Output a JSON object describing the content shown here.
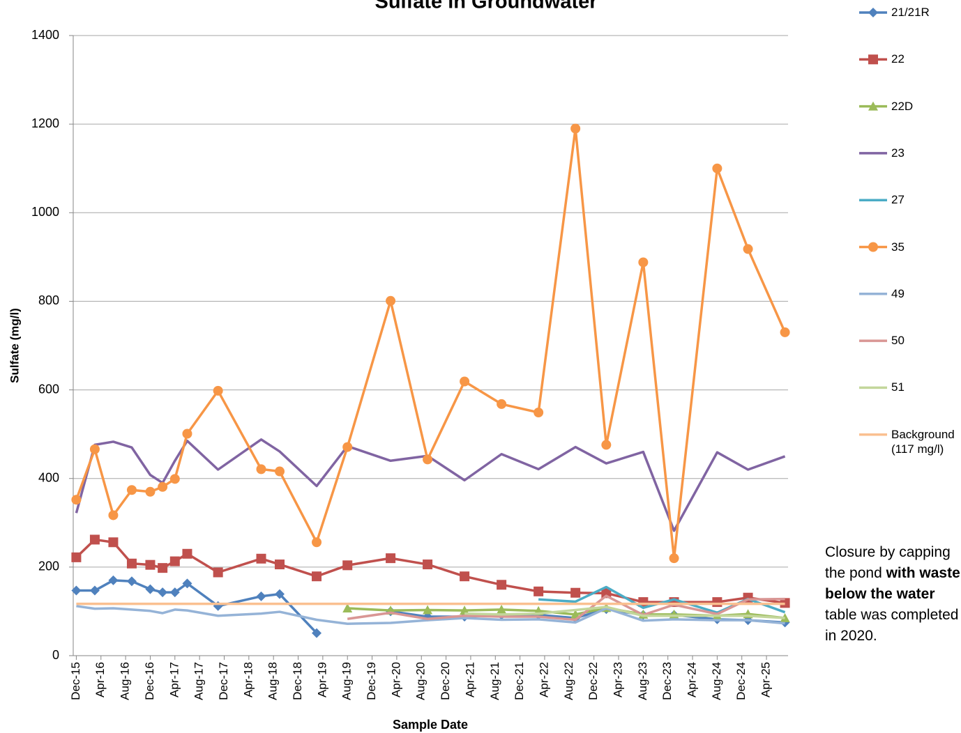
{
  "chart_data": {
    "type": "line",
    "title": "Sulfate in Groundwater",
    "x_label": "Sample Date",
    "y_label": "Sulfate (mg/l)",
    "ylim": [
      0,
      1400
    ],
    "yticks": [
      0,
      200,
      400,
      600,
      800,
      1000,
      1200,
      1400
    ],
    "xlim": [
      "Dec-15",
      "Jul-25"
    ],
    "xticks": [
      "Dec-15",
      "Apr-16",
      "Aug-16",
      "Dec-16",
      "Apr-17",
      "Aug-17",
      "Dec-17",
      "Apr-18",
      "Aug-18",
      "Dec-18",
      "Apr-19",
      "Aug-19",
      "Dec-19",
      "Apr-20",
      "Aug-20",
      "Dec-20",
      "Apr-21",
      "Aug-21",
      "Dec-21",
      "Apr-22",
      "Aug-22",
      "Dec-22",
      "Apr-23",
      "Aug-23",
      "Dec-23",
      "Apr-24",
      "Aug-24",
      "Dec-24",
      "Apr-25"
    ],
    "grid": true,
    "legend": "right",
    "annotation": [
      {
        "text": "Closure by capping the pond "
      },
      {
        "text": "with waste below the water",
        "bold": true
      },
      {
        "text": " table was completed in 2020."
      }
    ],
    "series": [
      {
        "name": "21/21R",
        "color": "#4f81bd",
        "marker": "diamond",
        "x": [
          "Dec-15",
          "Mar-16",
          "Jun-16",
          "Sep-16",
          "Dec-16",
          "Feb-17",
          "Apr-17",
          "Jun-17",
          "Nov-17",
          "Jun-18",
          "Sep-18",
          "Mar-19",
          "Aug-19",
          "Mar-20",
          "Sep-20",
          "Mar-21",
          "Sep-21",
          "Mar-22",
          "Sep-22",
          "Feb-23",
          "Aug-23",
          "Jan-24",
          "Aug-24",
          "Jan-25",
          "Jul-25"
        ],
        "values": [
          147,
          147,
          170,
          168,
          150,
          143,
          143,
          163,
          112,
          134,
          139,
          51,
          null,
          100,
          88,
          88,
          92,
          92,
          85,
          105,
          92,
          92,
          82,
          80,
          75
        ]
      },
      {
        "name": "22",
        "color": "#c0504d",
        "marker": "square",
        "x": [
          "Dec-15",
          "Mar-16",
          "Jun-16",
          "Sep-16",
          "Dec-16",
          "Feb-17",
          "Apr-17",
          "Jun-17",
          "Nov-17",
          "Jun-18",
          "Sep-18",
          "Mar-19",
          "Aug-19",
          "Mar-20",
          "Sep-20",
          "Mar-21",
          "Sep-21",
          "Mar-22",
          "Sep-22",
          "Feb-23",
          "Aug-23",
          "Jan-24",
          "Aug-24",
          "Jan-25",
          "Jul-25"
        ],
        "values": [
          222,
          262,
          256,
          208,
          205,
          198,
          213,
          230,
          188,
          219,
          206,
          179,
          204,
          220,
          206,
          179,
          160,
          145,
          142,
          141,
          121,
          121,
          121,
          131,
          119
        ]
      },
      {
        "name": "22D",
        "color": "#9bbb59",
        "marker": "triangle",
        "x": [
          "Aug-19",
          "Mar-20",
          "Sep-20",
          "Mar-21",
          "Sep-21",
          "Mar-22",
          "Sep-22",
          "Feb-23",
          "Aug-23",
          "Jan-24",
          "Aug-24",
          "Jan-25",
          "Jul-25"
        ],
        "values": [
          107,
          102,
          103,
          102,
          104,
          101,
          93,
          108,
          93,
          93,
          90,
          94,
          85
        ]
      },
      {
        "name": "23",
        "color": "#8064a2",
        "marker": null,
        "x": [
          "Dec-15",
          "Mar-16",
          "Jun-16",
          "Sep-16",
          "Dec-16",
          "Feb-17",
          "Apr-17",
          "Jun-17",
          "Nov-17",
          "Jun-18",
          "Sep-18",
          "Mar-19",
          "Aug-19",
          "Mar-20",
          "Sep-20",
          "Mar-21",
          "Sep-21",
          "Mar-22",
          "Sep-22",
          "Feb-23",
          "Aug-23",
          "Jan-24",
          "Aug-24",
          "Jan-25",
          "Jul-25"
        ],
        "values": [
          322,
          476,
          483,
          470,
          408,
          390,
          440,
          485,
          420,
          488,
          461,
          383,
          473,
          440,
          451,
          396,
          455,
          421,
          471,
          434,
          460,
          282,
          459,
          420,
          450
        ]
      },
      {
        "name": "27",
        "color": "#4bacc6",
        "marker": null,
        "x": [
          "Mar-22",
          "Sep-22",
          "Feb-23",
          "Aug-23",
          "Jan-24",
          "Aug-24",
          "Jan-25",
          "Jul-25"
        ],
        "values": [
          127,
          122,
          155,
          108,
          127,
          97,
          128,
          98
        ]
      },
      {
        "name": "35",
        "color": "#f79646",
        "marker": "circle",
        "x": [
          "Dec-15",
          "Mar-16",
          "Jun-16",
          "Sep-16",
          "Dec-16",
          "Feb-17",
          "Apr-17",
          "Jun-17",
          "Nov-17",
          "Jun-18",
          "Sep-18",
          "Mar-19",
          "Aug-19",
          "Mar-20",
          "Sep-20",
          "Mar-21",
          "Sep-21",
          "Mar-22",
          "Sep-22",
          "Feb-23",
          "Aug-23",
          "Jan-24",
          "Aug-24",
          "Jan-25",
          "Jul-25"
        ],
        "values": [
          352,
          466,
          317,
          374,
          370,
          381,
          399,
          501,
          598,
          421,
          416,
          256,
          471,
          801,
          443,
          619,
          568,
          549,
          1190,
          476,
          888,
          220,
          1100,
          918,
          730
        ]
      },
      {
        "name": "49",
        "color": "#95b3d7",
        "marker": null,
        "x": [
          "Dec-15",
          "Mar-16",
          "Jun-16",
          "Sep-16",
          "Dec-16",
          "Feb-17",
          "Apr-17",
          "Jun-17",
          "Nov-17",
          "Jun-18",
          "Sep-18",
          "Mar-19",
          "Aug-19",
          "Mar-20",
          "Sep-20",
          "Mar-21",
          "Sep-21",
          "Mar-22",
          "Sep-22",
          "Feb-23",
          "Aug-23",
          "Jan-24",
          "Aug-24",
          "Jan-25",
          "Jul-25"
        ],
        "values": [
          112,
          106,
          107,
          104,
          101,
          96,
          104,
          102,
          90,
          95,
          99,
          81,
          72,
          74,
          80,
          85,
          81,
          82,
          75,
          107,
          79,
          82,
          80,
          80,
          73
        ]
      },
      {
        "name": "50",
        "color": "#d99694",
        "marker": null,
        "x": [
          "Aug-19",
          "Mar-20",
          "Sep-20",
          "Mar-21",
          "Sep-21",
          "Mar-22",
          "Sep-22",
          "Feb-23",
          "Aug-23",
          "Jan-24",
          "Aug-24",
          "Jan-25",
          "Jul-25"
        ],
        "values": [
          83,
          97,
          83,
          90,
          88,
          88,
          81,
          135,
          92,
          115,
          94,
          127,
          128
        ]
      },
      {
        "name": "51",
        "color": "#c3d69b",
        "marker": null,
        "x": [
          "Mar-21",
          "Sep-21",
          "Mar-22",
          "Sep-22",
          "Feb-23",
          "Aug-23",
          "Jan-24",
          "Aug-24",
          "Jan-25",
          "Jul-25"
        ],
        "values": [
          95,
          93,
          95,
          103,
          110,
          90,
          90,
          90,
          90,
          85
        ]
      },
      {
        "name": "Background (117 mg/l)",
        "color": "#fac090",
        "marker": null,
        "x": [
          "Dec-15",
          "Jul-25"
        ],
        "values": [
          117,
          117
        ]
      }
    ]
  }
}
